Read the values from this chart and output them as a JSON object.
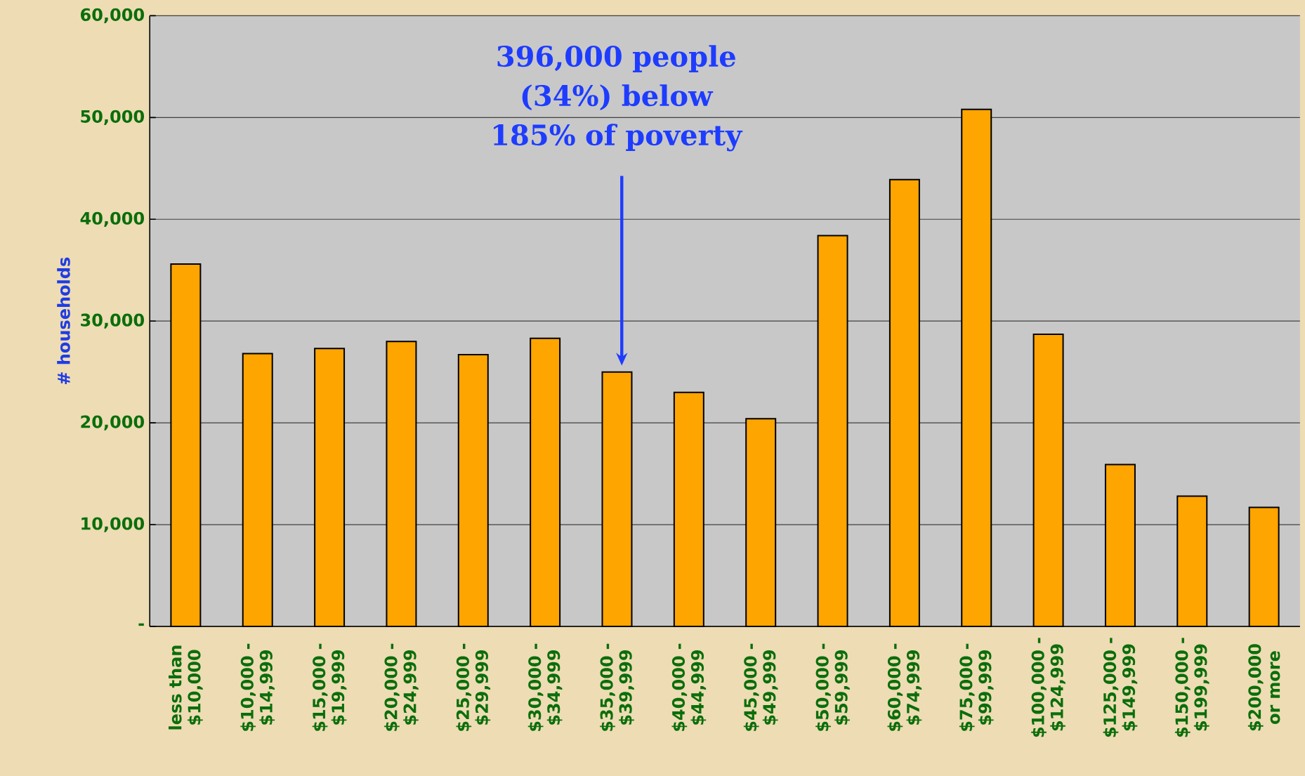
{
  "chart_data": {
    "type": "bar",
    "ylabel": "# households",
    "categories": [
      "less than $10,000",
      "$10,000 - $14,999",
      "$15,000 - $19,999",
      "$20,000 - $24,999",
      "$25,000 - $29,999",
      "$30,000 - $34,999",
      "$35,000 - $39,999",
      "$40,000 - $44,999",
      "$45,000 - $49,999",
      "$50,000 - $59,999",
      "$60,000 - $74,999",
      "$75,000 - $99,999",
      "$100,000 - $124,999",
      "$125,000 - $149,999",
      "$150,000 - $199,999",
      "$200,000 or more"
    ],
    "values": [
      35600,
      26800,
      27300,
      28000,
      26700,
      28300,
      25000,
      23000,
      20400,
      38400,
      43900,
      50800,
      28700,
      15900,
      12800,
      11700
    ],
    "color": "#ffa500",
    "ylim": [
      0,
      60000
    ],
    "yticks": [
      {
        "value": 0,
        "label": "-"
      },
      {
        "value": 10000,
        "label": "10,000"
      },
      {
        "value": 20000,
        "label": "20,000"
      },
      {
        "value": 30000,
        "label": "30,000"
      },
      {
        "value": 40000,
        "label": "40,000"
      },
      {
        "value": 50000,
        "label": "50,000"
      },
      {
        "value": 60000,
        "label": "60,000"
      }
    ],
    "grid": "y",
    "annotations": [
      "396,000 people (34%) below 185% of poverty"
    ]
  }
}
